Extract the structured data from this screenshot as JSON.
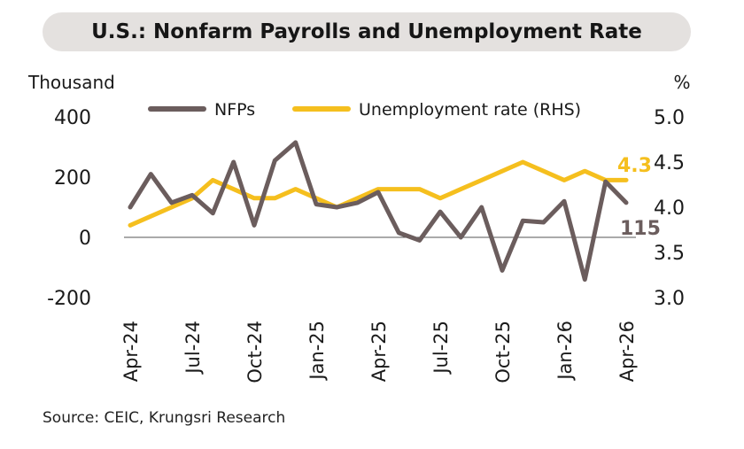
{
  "chart_data": {
    "type": "line",
    "title": "U.S.: Nonfarm Payrolls and Unemployment Rate",
    "source": "Source: CEIC, Krungsri Research",
    "ylabel": "Thousand",
    "y2label": "%",
    "x": [
      "Apr-24",
      "May-24",
      "Jun-24",
      "Jul-24",
      "Aug-24",
      "Sep-24",
      "Oct-24",
      "Nov-24",
      "Dec-24",
      "Jan-25",
      "Feb-25",
      "Mar-25",
      "Apr-25",
      "May-25",
      "Jun-25",
      "Jul-25",
      "Aug-25",
      "Sep-25",
      "Oct-25",
      "Nov-25",
      "Dec-25",
      "Jan-26",
      "Feb-26",
      "Mar-26",
      "Apr-26"
    ],
    "xticks": [
      "Apr-24",
      "Jul-24",
      "Oct-24",
      "Jan-25",
      "Apr-25",
      "Jul-25",
      "Oct-25",
      "Jan-26",
      "Apr-26"
    ],
    "ylim": [
      -200,
      400
    ],
    "yticks": [
      "400",
      "200",
      "0",
      "-200"
    ],
    "y2lim": [
      3.0,
      5.0
    ],
    "y2ticks": [
      "5.0",
      "4.5",
      "4.0",
      "3.5",
      "3.0"
    ],
    "legend_position": "top",
    "series": [
      {
        "name": "NFPs",
        "axis": "left",
        "color": "#6b5d5d",
        "values": [
          100,
          210,
          115,
          140,
          80,
          250,
          40,
          255,
          315,
          110,
          100,
          115,
          150,
          15,
          -10,
          85,
          0,
          100,
          -110,
          55,
          50,
          120,
          -140,
          185,
          115
        ],
        "end_label": "115"
      },
      {
        "name": "Unemployment rate  (RHS)",
        "axis": "right",
        "color": "#f5bf1e",
        "values": [
          3.8,
          3.9,
          4.0,
          4.1,
          4.3,
          4.2,
          4.1,
          4.1,
          4.2,
          4.1,
          4.0,
          4.1,
          4.2,
          4.2,
          4.2,
          4.1,
          4.2,
          4.3,
          4.4,
          4.5,
          4.4,
          4.3,
          4.4,
          4.3,
          4.3
        ],
        "end_label": "4.3"
      }
    ]
  }
}
